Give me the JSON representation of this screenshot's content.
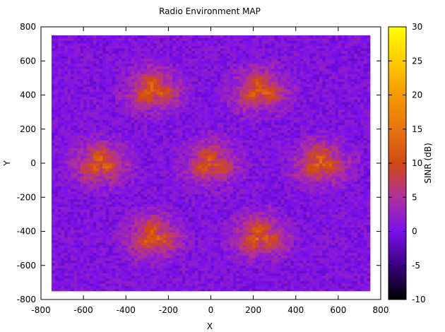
{
  "chart_data": {
    "type": "heatmap",
    "title": "Radio Environment MAP",
    "xlabel": "X",
    "ylabel": "Y",
    "xlim": [
      -800,
      800
    ],
    "ylim": [
      -800,
      800
    ],
    "data_extent": {
      "x": [
        -750,
        750
      ],
      "y": [
        -750,
        750
      ]
    },
    "xticks": [
      -800,
      -600,
      -400,
      -200,
      0,
      200,
      400,
      600,
      800
    ],
    "yticks": [
      -800,
      -600,
      -400,
      -200,
      0,
      200,
      400,
      600,
      800
    ],
    "colorbar": {
      "label": "SINR (dB)",
      "range": [
        -10,
        30
      ],
      "ticks": [
        -10,
        -5,
        0,
        5,
        10,
        15,
        20,
        25,
        30
      ],
      "colormap": "gnuplot-pm3d",
      "stops": [
        {
          "v": -10,
          "color": "#000000"
        },
        {
          "v": -5,
          "color": "#3a0080"
        },
        {
          "v": 0,
          "color": "#7a10ee"
        },
        {
          "v": 5,
          "color": "#b0309c"
        },
        {
          "v": 10,
          "color": "#d14a14"
        },
        {
          "v": 15,
          "color": "#e87410"
        },
        {
          "v": 20,
          "color": "#f49a00"
        },
        {
          "v": 25,
          "color": "#ffcc00"
        },
        {
          "v": 30,
          "color": "#ffff00"
        }
      ]
    },
    "background_sinr_db": 0.5,
    "base_stations": [
      {
        "x": -270,
        "y": 430,
        "peak_sinr_db": 16
      },
      {
        "x": 230,
        "y": 430,
        "peak_sinr_db": 16
      },
      {
        "x": -520,
        "y": 0,
        "peak_sinr_db": 16
      },
      {
        "x": 0,
        "y": 0,
        "peak_sinr_db": 15
      },
      {
        "x": 520,
        "y": 0,
        "peak_sinr_db": 16
      },
      {
        "x": -270,
        "y": -430,
        "peak_sinr_db": 16
      },
      {
        "x": 230,
        "y": -430,
        "peak_sinr_db": 16
      }
    ],
    "grid": false,
    "legend": "none"
  }
}
